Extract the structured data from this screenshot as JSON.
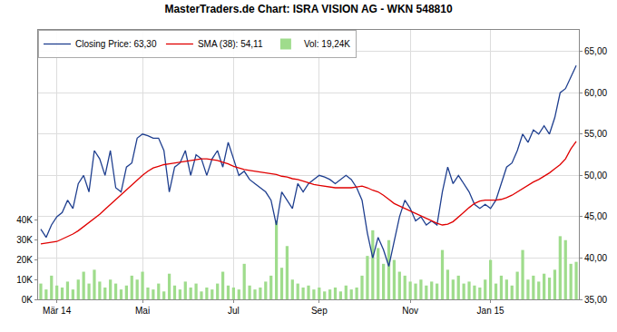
{
  "chart_data": {
    "type": "line",
    "title": "MasterTraders.de Chart: ISRA VISION AG - WKN 548810",
    "categories": [
      null,
      null,
      null,
      "Mär 14",
      null,
      null,
      null,
      null,
      null,
      null,
      null,
      null,
      null,
      null,
      null,
      null,
      null,
      null,
      null,
      "Mai",
      null,
      null,
      null,
      null,
      null,
      null,
      null,
      null,
      null,
      null,
      null,
      null,
      null,
      null,
      null,
      null,
      "Jul",
      null,
      null,
      null,
      null,
      null,
      null,
      null,
      null,
      null,
      null,
      null,
      null,
      null,
      null,
      null,
      "Sep",
      null,
      null,
      null,
      null,
      null,
      null,
      null,
      null,
      null,
      null,
      null,
      null,
      null,
      null,
      null,
      null,
      "Nov",
      null,
      null,
      null,
      null,
      null,
      null,
      null,
      null,
      null,
      null,
      null,
      null,
      null,
      null,
      "Jan 15",
      null,
      null,
      null,
      null,
      null,
      null,
      null,
      null,
      null,
      null,
      null,
      null,
      null,
      null,
      null,
      null
    ],
    "series": [
      {
        "name": "Closing Price: 63,30",
        "type": "line",
        "axis": "y2",
        "color": "#1f3f8f",
        "values": [
          43.5,
          42.5,
          44,
          45,
          45.5,
          47,
          46,
          49,
          50,
          48,
          53,
          52,
          50,
          53,
          48.5,
          48,
          51,
          51.5,
          54.5,
          55,
          54.8,
          54.5,
          54.5,
          53,
          48,
          51,
          51.5,
          53,
          50,
          52.5,
          52,
          50,
          52,
          53,
          51,
          54,
          52,
          50,
          50.5,
          49.5,
          49,
          48.5,
          48,
          47,
          44,
          48,
          47,
          46,
          49,
          48,
          49,
          49.5,
          50,
          49.8,
          49.5,
          49,
          49.5,
          50,
          49.5,
          48.5,
          47,
          43,
          40,
          42.5,
          41,
          39,
          42,
          45,
          47,
          46,
          44.5,
          45,
          44,
          44.5,
          44,
          48,
          51,
          49,
          50,
          49,
          48,
          46.5,
          46,
          46.5,
          46,
          47,
          49,
          51,
          51.5,
          53,
          55,
          54,
          55.5,
          55,
          56,
          55,
          57,
          60,
          60.5,
          62,
          63.3
        ]
      },
      {
        "name": "SMA (38): 54,11",
        "type": "line",
        "axis": "y2",
        "color": "#e00000",
        "values": [
          41.7,
          41.8,
          41.9,
          42,
          42.3,
          42.6,
          42.9,
          43.3,
          43.8,
          44.2,
          44.7,
          45.3,
          45.9,
          46.5,
          47.1,
          47.7,
          48.3,
          48.9,
          49.5,
          50,
          50.5,
          50.9,
          51.1,
          51.3,
          51.4,
          51.5,
          51.6,
          51.7,
          51.8,
          51.9,
          52,
          52,
          51.9,
          51.8,
          51.6,
          51.4,
          51.1,
          50.9,
          50.7,
          50.6,
          50.5,
          50.4,
          50.3,
          50.2,
          50.1,
          49.9,
          49.8,
          49.6,
          49.5,
          49.3,
          49.1,
          48.9,
          48.8,
          48.7,
          48.6,
          48.5,
          48.5,
          48.5,
          48.5,
          48.6,
          48.7,
          48.5,
          48.2,
          48,
          47.6,
          47.1,
          46.6,
          46.3,
          46,
          45.7,
          45.4,
          45.1,
          44.8,
          44.5,
          44.2,
          44,
          44.1,
          44.4,
          45,
          45.6,
          46.1,
          46.6,
          46.9,
          47,
          47,
          47,
          47.1,
          47.3,
          47.6,
          48,
          48.4,
          48.8,
          49.2,
          49.5,
          49.9,
          50.3,
          50.8,
          51.3,
          52,
          53.2,
          54.1
        ]
      },
      {
        "name": "Vol: 19,24K",
        "type": "bar",
        "color": "#9fdc8c",
        "values": [
          8000,
          5000,
          12000,
          7000,
          6000,
          9000,
          5000,
          10000,
          14000,
          8000,
          15000,
          9000,
          6000,
          10000,
          8000,
          5000,
          7000,
          12000,
          10000,
          14000,
          6000,
          5000,
          8000,
          4000,
          13000,
          7000,
          5000,
          9000,
          6000,
          8000,
          4000,
          6000,
          5000,
          8000,
          14000,
          7000,
          6000,
          5000,
          18000,
          7000,
          5000,
          6000,
          9000,
          12000,
          40000,
          16000,
          27000,
          10000,
          8000,
          6000,
          7000,
          5000,
          6000,
          4000,
          5000,
          6000,
          4000,
          7000,
          5000,
          6000,
          12000,
          22000,
          35000,
          26000,
          18000,
          30000,
          20000,
          14000,
          12000,
          9000,
          8000,
          10000,
          7000,
          9000,
          8000,
          25000,
          15000,
          10000,
          12000,
          8000,
          9000,
          7000,
          6000,
          10000,
          20000,
          8000,
          12000,
          10000,
          7000,
          14000,
          25000,
          10000,
          12000,
          9000,
          13000,
          11000,
          15000,
          32000,
          30000,
          18000,
          19000
        ]
      }
    ],
    "ylim": [
      0,
      136500
    ],
    "yticks": [
      {
        "value": 0,
        "label": "0K"
      },
      {
        "value": 10000,
        "label": "10K"
      },
      {
        "value": 20000,
        "label": "20K"
      },
      {
        "value": 30000,
        "label": "30K"
      },
      {
        "value": 40000,
        "label": "40K"
      }
    ],
    "y2lim": [
      35,
      67.6
    ],
    "y2ticks": [
      {
        "value": 35,
        "label": "35,00"
      },
      {
        "value": 40,
        "label": "40,00"
      },
      {
        "value": 45,
        "label": "45,00"
      },
      {
        "value": 50,
        "label": "50,00"
      },
      {
        "value": 55,
        "label": "55,00"
      },
      {
        "value": 60,
        "label": "60,00"
      },
      {
        "value": 65,
        "label": "65,00"
      }
    ],
    "grid": true,
    "legend": "top left"
  }
}
